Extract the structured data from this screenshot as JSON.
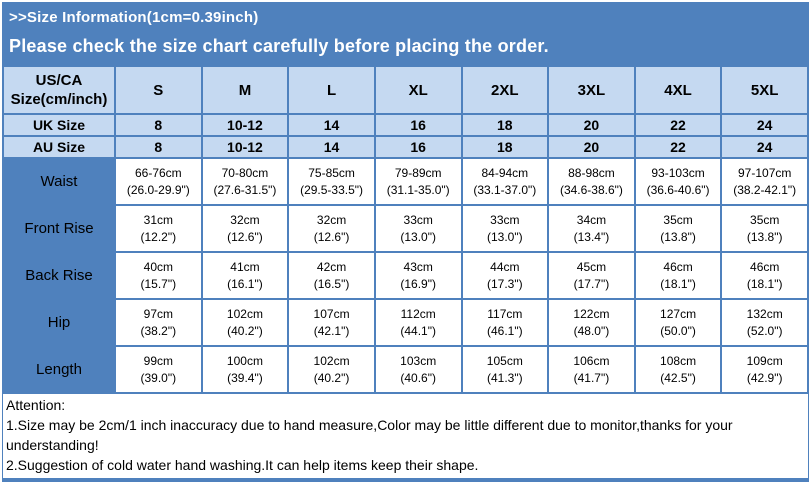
{
  "colors": {
    "accent_blue": "#4f81bd",
    "header_fill": "#c5d9f1",
    "cell_fill": "#ffffff",
    "banner_text": "#ffffff",
    "body_text": "#000000"
  },
  "banner": {
    "title": ">>Size Information(1cm=0.39inch)",
    "notice": "Please check the size chart carefully before placing the order."
  },
  "table": {
    "corner_line1": "US/CA",
    "corner_line2": "Size(cm/inch)",
    "columns": [
      "S",
      "M",
      "L",
      "XL",
      "2XL",
      "3XL",
      "4XL",
      "5XL"
    ],
    "uk_row": {
      "label": "UK Size",
      "values": [
        "8",
        "10-12",
        "14",
        "16",
        "18",
        "20",
        "22",
        "24"
      ]
    },
    "au_row": {
      "label": "AU Size",
      "values": [
        "8",
        "10-12",
        "14",
        "16",
        "18",
        "20",
        "22",
        "24"
      ]
    },
    "measurement_rows": [
      {
        "label": "Waist",
        "cm": [
          "66-76cm",
          "70-80cm",
          "75-85cm",
          "79-89cm",
          "84-94cm",
          "88-98cm",
          "93-103cm",
          "97-107cm"
        ],
        "inch": [
          "(26.0-29.9\")",
          "(27.6-31.5\")",
          "(29.5-33.5\")",
          "(31.1-35.0\")",
          "(33.1-37.0\")",
          "(34.6-38.6\")",
          "(36.6-40.6\")",
          "(38.2-42.1\")"
        ]
      },
      {
        "label": "Front Rise",
        "cm": [
          "31cm",
          "32cm",
          "32cm",
          "33cm",
          "33cm",
          "34cm",
          "35cm",
          "35cm"
        ],
        "inch": [
          "(12.2\")",
          "(12.6\")",
          "(12.6\")",
          "(13.0\")",
          "(13.0\")",
          "(13.4\")",
          "(13.8\")",
          "(13.8\")"
        ]
      },
      {
        "label": "Back Rise",
        "cm": [
          "40cm",
          "41cm",
          "42cm",
          "43cm",
          "44cm",
          "45cm",
          "46cm",
          "46cm"
        ],
        "inch": [
          "(15.7\")",
          "(16.1\")",
          "(16.5\")",
          "(16.9\")",
          "(17.3\")",
          "(17.7\")",
          "(18.1\")",
          "(18.1\")"
        ]
      },
      {
        "label": "Hip",
        "cm": [
          "97cm",
          "102cm",
          "107cm",
          "112cm",
          "117cm",
          "122cm",
          "127cm",
          "132cm"
        ],
        "inch": [
          "(38.2\")",
          "(40.2\")",
          "(42.1\")",
          "(44.1\")",
          "(46.1\")",
          "(48.0\")",
          "(50.0\")",
          "(52.0\")"
        ]
      },
      {
        "label": "Length",
        "cm": [
          "99cm",
          "100cm",
          "102cm",
          "103cm",
          "105cm",
          "106cm",
          "108cm",
          "109cm"
        ],
        "inch": [
          "(39.0\")",
          "(39.4\")",
          "(40.2\")",
          "(40.6\")",
          "(41.3\")",
          "(41.7\")",
          "(42.5\")",
          "(42.9\")"
        ]
      }
    ]
  },
  "attention": {
    "heading": "Attention:",
    "note1": "1.Size may be 2cm/1 inch inaccuracy due to hand measure,Color may be little different due to monitor,thanks for your understanding!",
    "note2": "2.Suggestion of cold water hand washing.It can help items keep their shape."
  }
}
